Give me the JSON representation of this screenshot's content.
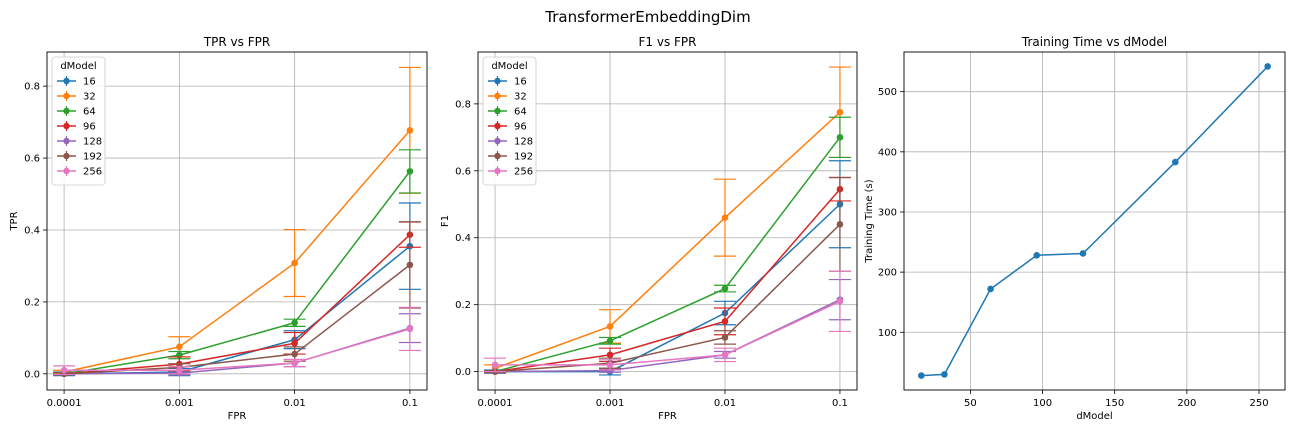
{
  "figure": {
    "suptitle": "TransformerEmbeddingDim"
  },
  "chart_data": [
    {
      "type": "line",
      "title": "TPR vs FPR",
      "xlabel": "FPR",
      "ylabel": "TPR",
      "x_scale": "categorical",
      "categories": [
        "0.0001",
        "0.001",
        "0.01",
        "0.1"
      ],
      "ylim": [
        -0.045,
        0.895
      ],
      "yticks": [
        0.0,
        0.2,
        0.4,
        0.6,
        0.8
      ],
      "ytick_labels": [
        "0.0",
        "0.2",
        "0.4",
        "0.6",
        "0.8"
      ],
      "grid": true,
      "error_bars": true,
      "legend": {
        "title": "dModel",
        "placement": "upper-left"
      },
      "series": [
        {
          "name": "16",
          "color": "#1f77b4",
          "values": [
            0.0,
            0.005,
            0.095,
            0.355
          ],
          "err": [
            0.005,
            0.01,
            0.025,
            0.12
          ]
        },
        {
          "name": "32",
          "color": "#ff7f0e",
          "values": [
            0.005,
            0.075,
            0.308,
            0.677
          ],
          "err": [
            0.005,
            0.028,
            0.093,
            0.175
          ]
        },
        {
          "name": "64",
          "color": "#2ca02c",
          "values": [
            0.0,
            0.052,
            0.142,
            0.563
          ],
          "err": [
            0.003,
            0.01,
            0.01,
            0.06
          ]
        },
        {
          "name": "96",
          "color": "#d62728",
          "values": [
            0.0,
            0.027,
            0.085,
            0.387
          ],
          "err": [
            0.003,
            0.02,
            0.03,
            0.035
          ]
        },
        {
          "name": "128",
          "color": "#9467bd",
          "values": [
            0.0,
            0.002,
            0.03,
            0.127
          ],
          "err": [
            0.003,
            0.005,
            0.01,
            0.04
          ]
        },
        {
          "name": "192",
          "color": "#8c564b",
          "values": [
            0.0,
            0.018,
            0.055,
            0.303
          ],
          "err": [
            0.003,
            0.01,
            0.02,
            0.12
          ]
        },
        {
          "name": "256",
          "color": "#e377c2",
          "values": [
            0.01,
            0.01,
            0.03,
            0.125
          ],
          "err": [
            0.012,
            0.01,
            0.01,
            0.06
          ]
        }
      ]
    },
    {
      "type": "line",
      "title": "F1 vs FPR",
      "xlabel": "FPR",
      "ylabel": "F1",
      "x_scale": "categorical",
      "categories": [
        "0.0001",
        "0.001",
        "0.01",
        "0.1"
      ],
      "ylim": [
        -0.055,
        0.955
      ],
      "yticks": [
        0.0,
        0.2,
        0.4,
        0.6,
        0.8
      ],
      "ytick_labels": [
        "0.0",
        "0.2",
        "0.4",
        "0.6",
        "0.8"
      ],
      "grid": true,
      "error_bars": true,
      "legend": {
        "title": "dModel",
        "placement": "upper-left"
      },
      "series": [
        {
          "name": "16",
          "color": "#1f77b4",
          "values": [
            0.0,
            0.0,
            0.175,
            0.5
          ],
          "err": [
            0.005,
            0.01,
            0.035,
            0.13
          ]
        },
        {
          "name": "32",
          "color": "#ff7f0e",
          "values": [
            0.01,
            0.135,
            0.46,
            0.775
          ],
          "err": [
            0.01,
            0.05,
            0.115,
            0.135
          ]
        },
        {
          "name": "64",
          "color": "#2ca02c",
          "values": [
            0.0,
            0.092,
            0.248,
            0.7
          ],
          "err": [
            0.003,
            0.01,
            0.01,
            0.06
          ]
        },
        {
          "name": "96",
          "color": "#d62728",
          "values": [
            0.0,
            0.05,
            0.15,
            0.545
          ],
          "err": [
            0.003,
            0.02,
            0.04,
            0.035
          ]
        },
        {
          "name": "128",
          "color": "#9467bd",
          "values": [
            0.0,
            0.003,
            0.05,
            0.215
          ],
          "err": [
            0.003,
            0.005,
            0.01,
            0.06
          ]
        },
        {
          "name": "192",
          "color": "#8c564b",
          "values": [
            0.0,
            0.025,
            0.102,
            0.44
          ],
          "err": [
            0.003,
            0.015,
            0.02,
            0.14
          ]
        },
        {
          "name": "256",
          "color": "#e377c2",
          "values": [
            0.02,
            0.02,
            0.05,
            0.21
          ],
          "err": [
            0.02,
            0.015,
            0.02,
            0.09
          ]
        }
      ]
    },
    {
      "type": "line",
      "title": "Training Time vs dModel",
      "xlabel": "dModel",
      "ylabel": "Training Time (s)",
      "x_scale": "linear",
      "xlim": [
        4,
        268
      ],
      "xticks": [
        50,
        100,
        150,
        200,
        250
      ],
      "ylim": [
        4,
        566
      ],
      "yticks": [
        100,
        200,
        300,
        400,
        500
      ],
      "grid": true,
      "error_bars": false,
      "legend": null,
      "series": [
        {
          "name": "",
          "color": "#1f77b4",
          "x": [
            16,
            32,
            64,
            96,
            128,
            192,
            256
          ],
          "values": [
            28,
            30,
            172,
            228,
            231,
            383,
            542
          ]
        }
      ]
    }
  ]
}
